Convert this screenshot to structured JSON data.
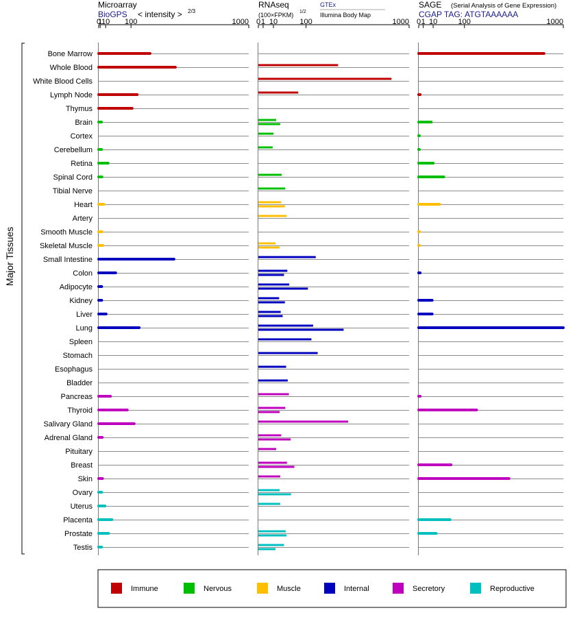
{
  "headers": {
    "microarray": {
      "title": "Microarray",
      "source": "BioGPS",
      "measure": "< intensity >",
      "exponent": "2/3"
    },
    "rnaseq": {
      "title": "RNAseq",
      "unit": "(100×FPKM)",
      "exponent": "1/2",
      "source1": "GTEx",
      "source2": "Illumina Body Map"
    },
    "sage": {
      "title": "SAGE",
      "subtitle": "(Serial Analysis of Gene Expression)",
      "tag_prefix": "CGAP TAG:",
      "tag": "ATGTAAAAAA"
    }
  },
  "axis_ticks": [
    "0",
    "1",
    "10",
    "100",
    "1000"
  ],
  "y_group_label": "Major Tissues",
  "colors": {
    "Immune": "#c00000",
    "Nervous": "#00bf00",
    "Muscle": "#ffbf00",
    "Internal": "#0000bf",
    "Secretory": "#bf00bf",
    "Reproductive": "#00bfbf"
  },
  "legend": [
    {
      "label": "Immune",
      "color": "#c00000"
    },
    {
      "label": "Nervous",
      "color": "#00bf00"
    },
    {
      "label": "Muscle",
      "color": "#ffbf00"
    },
    {
      "label": "Internal",
      "color": "#0000bf"
    },
    {
      "label": "Secretory",
      "color": "#bf00bf"
    },
    {
      "label": "Reproductive",
      "color": "#00bfbf"
    }
  ],
  "chart_data": {
    "type": "bar",
    "orientation": "horizontal",
    "x_scale": "power",
    "x_range": [
      0,
      1000
    ],
    "grid": true,
    "categories": [
      "Bone Marrow",
      "Whole Blood",
      "White Blood Cells",
      "Lymph Node",
      "Thymus",
      "Brain",
      "Cortex",
      "Cerebellum",
      "Retina",
      "Spinal Cord",
      "Tibial Nerve",
      "Heart",
      "Artery",
      "Smooth Muscle",
      "Skeletal Muscle",
      "Small Intestine",
      "Colon",
      "Adipocyte",
      "Kidney",
      "Liver",
      "Lung",
      "Spleen",
      "Stomach",
      "Esophagus",
      "Bladder",
      "Pancreas",
      "Thyroid",
      "Salivary Gland",
      "Adrenal Gland",
      "Pituitary",
      "Breast",
      "Skin",
      "Ovary",
      "Uterus",
      "Placenta",
      "Prostate",
      "Testis"
    ],
    "groups": [
      "Immune",
      "Immune",
      "Immune",
      "Immune",
      "Immune",
      "Nervous",
      "Nervous",
      "Nervous",
      "Nervous",
      "Nervous",
      "Nervous",
      "Muscle",
      "Muscle",
      "Muscle",
      "Muscle",
      "Internal",
      "Internal",
      "Internal",
      "Internal",
      "Internal",
      "Internal",
      "Internal",
      "Internal",
      "Internal",
      "Internal",
      "Secretory",
      "Secretory",
      "Secretory",
      "Secretory",
      "Secretory",
      "Secretory",
      "Secretory",
      "Reproductive",
      "Reproductive",
      "Reproductive",
      "Reproductive",
      "Reproductive"
    ],
    "microarray": [
      200,
      365,
      null,
      130,
      105,
      2.5,
      null,
      2.6,
      15.5,
      3.2,
      null,
      6.3,
      null,
      3.0,
      4.5,
      355,
      38,
      2.8,
      2.8,
      11,
      140,
      null,
      null,
      null,
      null,
      22,
      83,
      115,
      3.6,
      null,
      null,
      4.0,
      2.7,
      8.6,
      26,
      17,
      2.6
    ],
    "rnaseq_gtex": [
      null,
      280,
      780,
      70,
      null,
      14,
      10,
      9,
      null,
      24,
      32,
      23,
      35,
      null,
      13,
      145,
      37,
      42,
      19,
      22,
      132,
      124,
      155,
      34,
      38,
      41,
      32,
      355,
      23,
      14,
      36,
      21,
      20,
      21,
      null,
      33,
      29
    ],
    "rnaseq_ibm": [
      null,
      null,
      null,
      null,
      null,
      21,
      null,
      null,
      null,
      null,
      null,
      31,
      null,
      null,
      20,
      null,
      29,
      108,
      31,
      26,
      320,
      null,
      null,
      null,
      null,
      null,
      20,
      null,
      46,
      null,
      57,
      null,
      47,
      null,
      null,
      35,
      13
    ],
    "sage": [
      750,
      null,
      null,
      0.1,
      null,
      7.5,
      0.01,
      0.01,
      10,
      30,
      null,
      21,
      null,
      0.01,
      0.01,
      null,
      0.1,
      null,
      8.6,
      8.6,
      1000,
      null,
      null,
      null,
      null,
      0.1,
      160,
      null,
      null,
      null,
      50,
      390,
      null,
      null,
      47,
      14.5,
      null
    ]
  }
}
